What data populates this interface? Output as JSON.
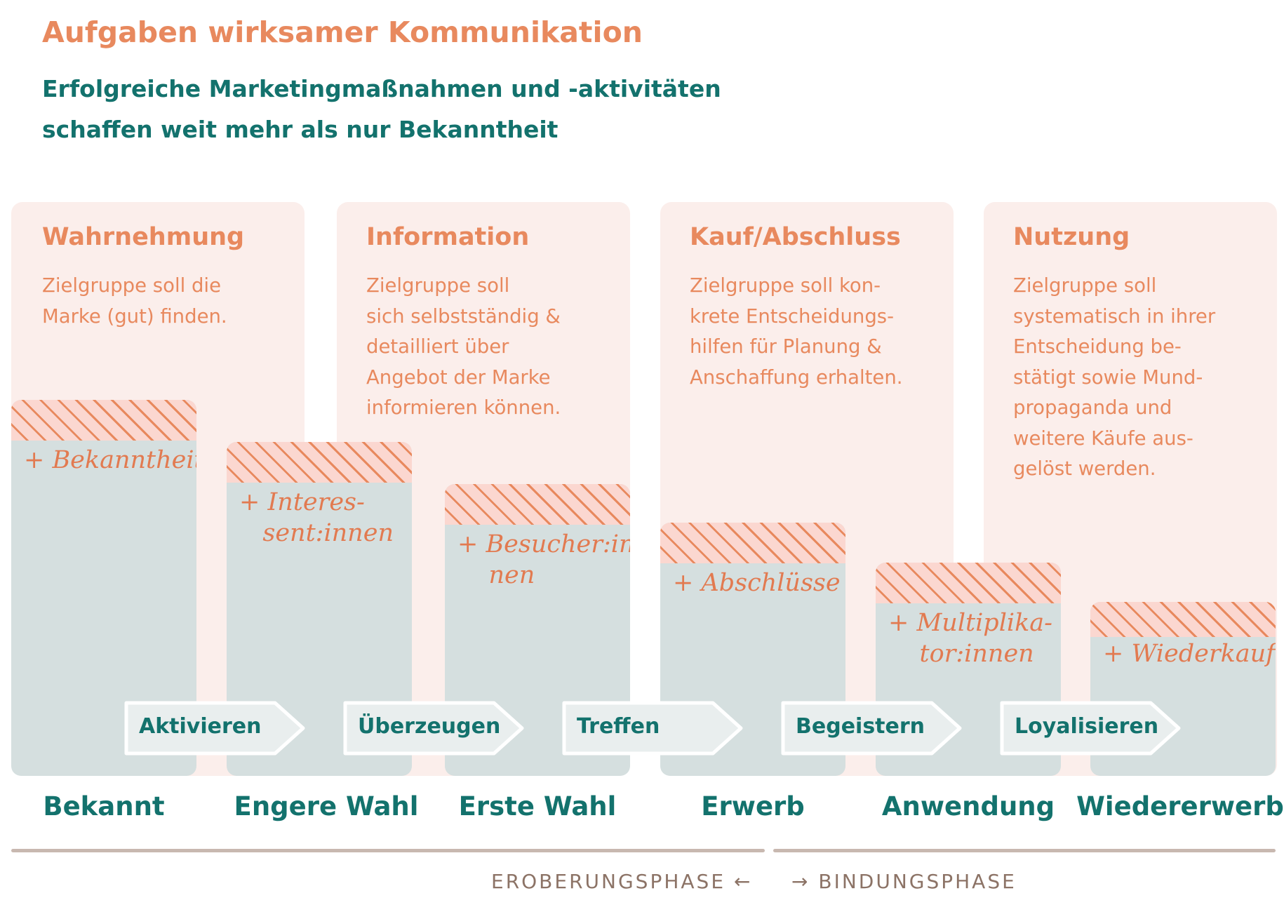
{
  "title": "Aufgaben wirksamer Kommunikation",
  "subtitle": "Erfolgreiche Marketingmaßnahmen und -aktivitäten schaffen weit mehr als nur Bekanntheit",
  "phases": [
    {
      "heading": "Wahrnehmung",
      "description": "Zielgruppe soll die\nMarke (gut) finden."
    },
    {
      "heading": "Information",
      "description": "Zielgruppe soll\nsich selbstständig &\ndetailliert über\nAngebot der Marke\ninformieren können."
    },
    {
      "heading": "Kauf/Abschluss",
      "description": "Zielgruppe soll kon-\nkrete Entscheidungs-\nhilfen für Planung &\nAnschaffung erhalten."
    },
    {
      "heading": "Nutzung",
      "description": "Zielgruppe soll\nsystematisch in ihrer\nEntscheidung be-\nstätigt sowie Mund-\npropaganda und\nweitere Käufe aus-\ngelöst werden."
    }
  ],
  "stages": [
    {
      "gain": "+ Bekanntheit",
      "label": "Bekannt"
    },
    {
      "gain": "+ Interes-\n   sent:innen",
      "label": "Engere Wahl"
    },
    {
      "gain": "+ Besucher:in-\n    nen",
      "label": "Erste Wahl"
    },
    {
      "gain": "+ Abschlüsse",
      "label": "Erwerb"
    },
    {
      "gain": "+ Multiplika-\n    tor:innen",
      "label": "Anwendung"
    },
    {
      "gain": "+ Wiederkauf",
      "label": "Wiedererwerb"
    }
  ],
  "actions": [
    "Aktivieren",
    "Überzeugen",
    "Treffen",
    "Begeistern",
    "Loyalisieren"
  ],
  "phase_labels": {
    "left": "EROBERUNGSPHASE ←",
    "right": "→ BINDUNGSPHASE"
  },
  "colors": {
    "orange": "#e8895e",
    "teal": "#13726d",
    "column_bg": "#fbeeeb",
    "stage_bg": "#d5dfdf",
    "hatch_bg": "#fbd7d0",
    "arrow_bg": "#e9eeee",
    "phase_text": "#8c7366"
  }
}
